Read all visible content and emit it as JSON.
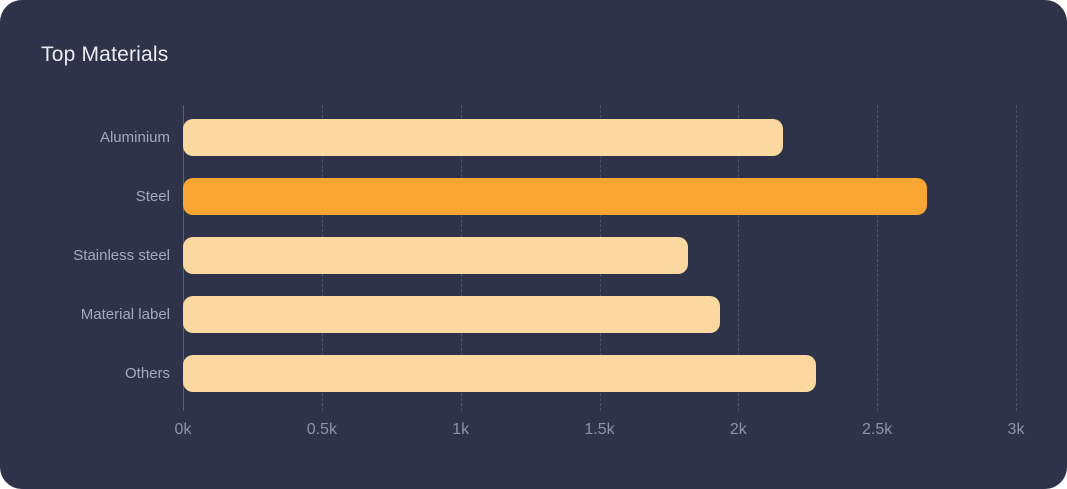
{
  "card": {
    "background": "#2F3349"
  },
  "chart_data": {
    "type": "bar",
    "orientation": "horizontal",
    "title": "Top Materials",
    "categories": [
      "Aluminium",
      "Steel",
      "Stainless steel",
      "Material label",
      "Others"
    ],
    "values": [
      2160,
      2680,
      1820,
      1935,
      2280
    ],
    "highlight_index": 1,
    "xlabel": "",
    "ylabel": "",
    "xlim": [
      0,
      3000
    ],
    "x_ticks": [
      "0k",
      "0.5k",
      "1k",
      "1.5k",
      "2k",
      "2.5k",
      "3k"
    ],
    "x_tick_values": [
      0,
      500,
      1000,
      1500,
      2000,
      2500,
      3000
    ],
    "bar_color": "#FBD8A0",
    "highlight_color": "#F8A531",
    "grid": "vertical-dashed",
    "legend": "none"
  }
}
